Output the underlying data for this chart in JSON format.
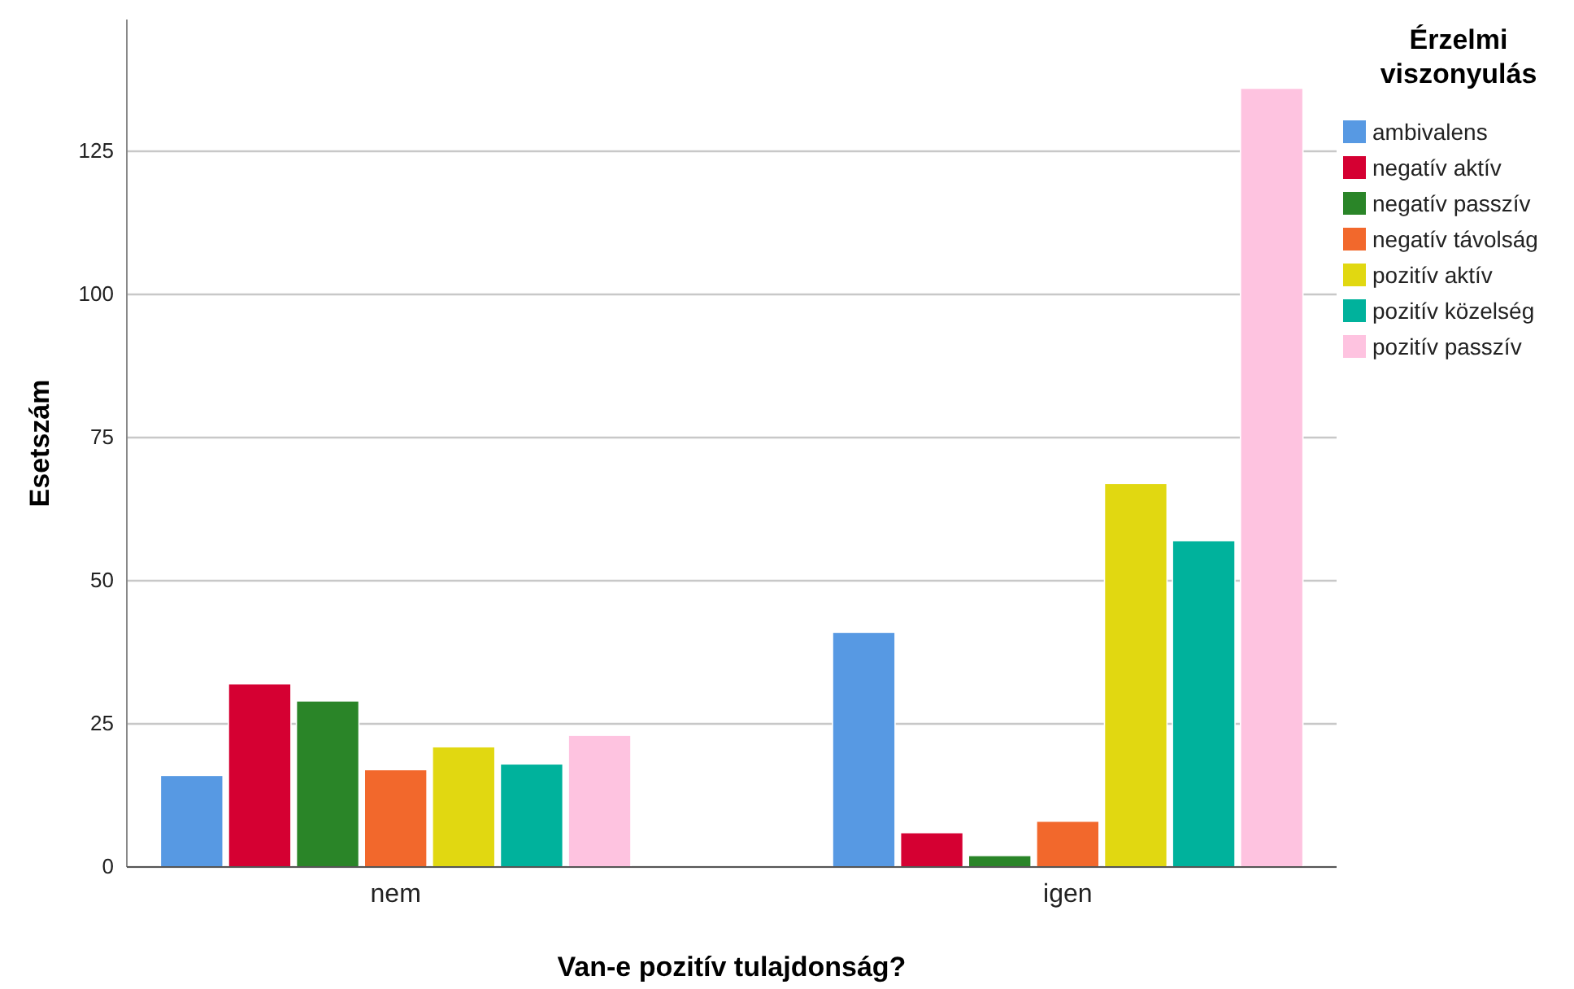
{
  "chart_data": {
    "type": "bar",
    "xlabel": "Van-e pozitív tulajdonság?",
    "ylabel": "Esetszám",
    "legend_title": "Érzelmi viszonyulás",
    "categories": [
      "nem",
      "igen"
    ],
    "series": [
      {
        "name": "ambivalens",
        "color": "#5799e3",
        "values": [
          16,
          41
        ]
      },
      {
        "name": "negatív aktív",
        "color": "#d50032",
        "values": [
          32,
          6
        ]
      },
      {
        "name": "negatív passzív",
        "color": "#2a8528",
        "values": [
          29,
          2
        ]
      },
      {
        "name": "negatív távolság",
        "color": "#f2682c",
        "values": [
          17,
          8
        ]
      },
      {
        "name": "pozitív aktív",
        "color": "#e1d811",
        "values": [
          21,
          67
        ]
      },
      {
        "name": "pozitív közelség",
        "color": "#00b29c",
        "values": [
          18,
          57
        ]
      },
      {
        "name": "pozitív passzív",
        "color": "#fec3e0",
        "values": [
          23,
          136
        ]
      }
    ],
    "ylim": [
      0,
      148
    ],
    "yticks": [
      0,
      25,
      50,
      75,
      100,
      125
    ],
    "grid": "y",
    "legend": "top right"
  }
}
